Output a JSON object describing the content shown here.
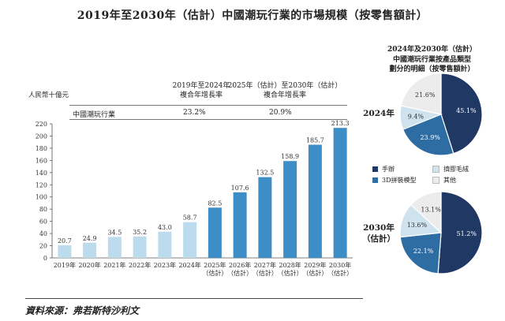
{
  "title": "2019年至2030年（估計）中國潮玩行業的市場規模（按零售額計）",
  "unit_label": "人民幣十億元",
  "cagr": {
    "row_label": "中國潮玩行業",
    "period1_label_line1": "2019年至2024年",
    "period1_label_line2": "複合年增長率",
    "period1_value": "23.2%",
    "period2_label_line1": "2025年（估計）至2030年（估計）",
    "period2_label_line2": "複合年增長率",
    "period2_value": "20.9%"
  },
  "source": "資料來源：弗若斯特沙利文",
  "pie_box_title": {
    "line1": "2024年及2030年（估計）",
    "line2": "中國潮玩行業按產品類型",
    "line3": "劃分的明細（按零售額計）"
  },
  "pie_year_2024": "2024年",
  "pie_year_2030_line1": "2030年",
  "pie_year_2030_line2": "（估計）",
  "legend": [
    {
      "label": "手辦",
      "color": "#1f3864"
    },
    {
      "label": "擠膠毛絨",
      "color": "#cfe3ef"
    },
    {
      "label": "3D拼裝模型",
      "color": "#2e6da4"
    },
    {
      "label": "其他",
      "color": "#ececec"
    }
  ],
  "chart_data": [
    {
      "type": "bar",
      "categories": [
        "2019年",
        "2020年",
        "2021年",
        "2022年",
        "2023年",
        "2024年",
        "2025年\n（估計）",
        "2026年\n（估計）",
        "2027年\n（估計）",
        "2028年\n（估計）",
        "2029年\n（估計）",
        "2030年\n（估計）"
      ],
      "values": [
        20.7,
        24.9,
        34.5,
        35.2,
        43.0,
        58.7,
        82.5,
        107.6,
        132.5,
        158.9,
        185.7,
        213.3
      ],
      "value_labels": [
        "20.7",
        "24.9",
        "34.5",
        "35.2",
        "43.0",
        "58.7",
        "82.5",
        "107.6",
        "132.5",
        "158.9",
        "185.7",
        "213.3"
      ],
      "ylim": [
        0,
        220
      ],
      "yticks": [
        0,
        20,
        40,
        60,
        80,
        100,
        120,
        140,
        160,
        180,
        200,
        220
      ],
      "colors": {
        "historical": "#bcdcee",
        "forecast": "#3d8ec7"
      },
      "forecast_from_index": 6,
      "grid": false
    },
    {
      "type": "pie",
      "labels": [
        "手辦",
        "3D拼裝模型",
        "擠膠毛絨",
        "其他"
      ],
      "values": [
        45.1,
        23.9,
        9.4,
        21.6
      ],
      "value_labels": [
        "45.1%",
        "23.9%",
        "9.4%",
        "21.6%"
      ],
      "colors": [
        "#1f3864",
        "#2e6da4",
        "#cfe3ef",
        "#ececec"
      ]
    },
    {
      "type": "pie",
      "labels": [
        "手辦",
        "3D拼裝模型",
        "擠膠毛絨",
        "其他"
      ],
      "values": [
        51.2,
        22.1,
        13.6,
        13.1
      ],
      "value_labels": [
        "51.2%",
        "22.1%",
        "13.6%",
        "13.1%"
      ],
      "colors": [
        "#1f3864",
        "#2e6da4",
        "#cfe3ef",
        "#ececec"
      ]
    }
  ]
}
